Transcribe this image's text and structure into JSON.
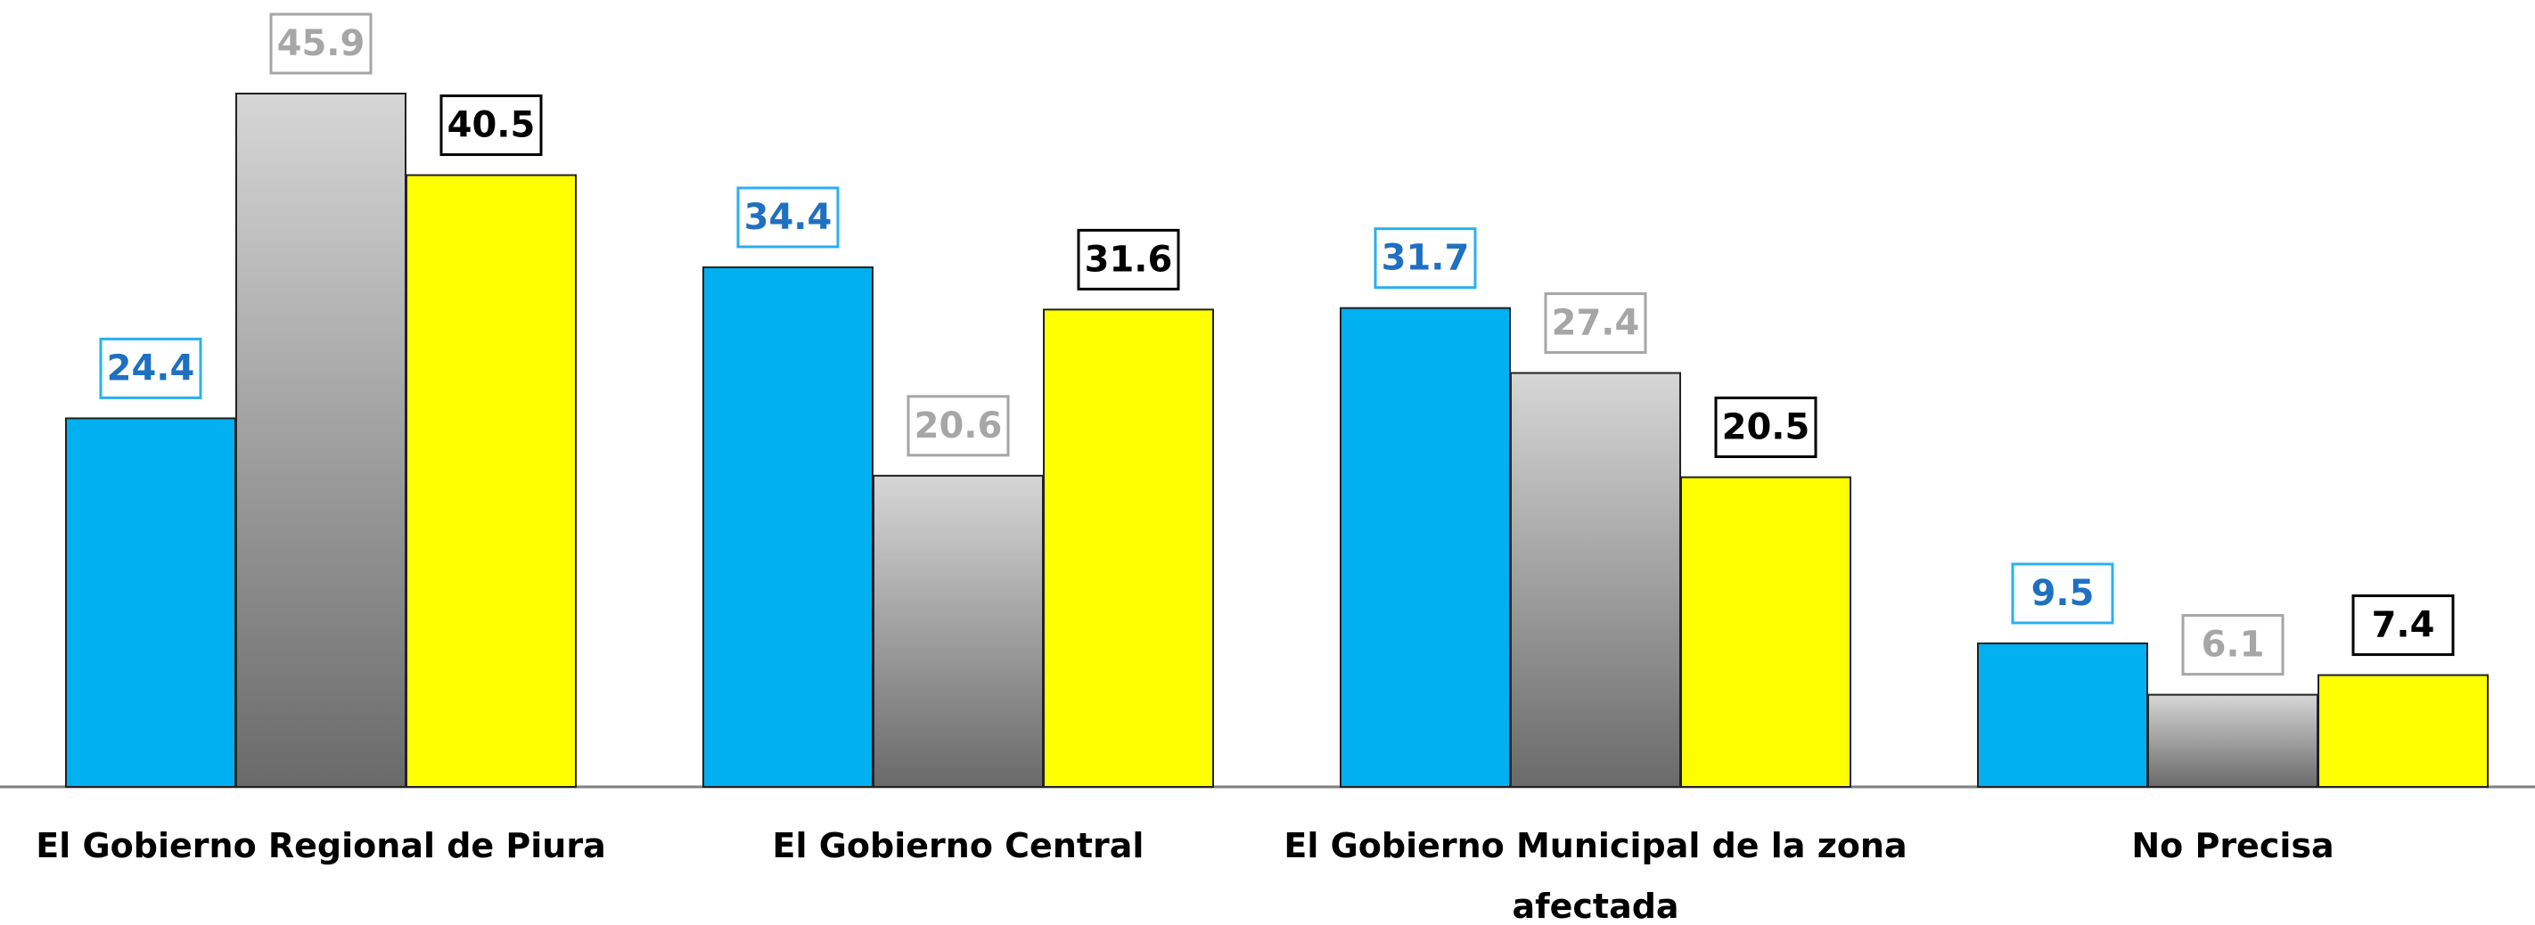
{
  "chart_data": {
    "type": "bar",
    "categories": [
      "El Gobierno Regional de Piura",
      "El Gobierno Central",
      "El Gobierno Municipal de la zona afectada",
      "No Precisa"
    ],
    "series": [
      {
        "color": "#00b0f0",
        "values": [
          24.4,
          34.4,
          31.7,
          9.5
        ]
      },
      {
        "color": "#6a6a6a",
        "values": [
          45.9,
          20.6,
          27.4,
          6.1
        ]
      },
      {
        "color": "#ffff00",
        "values": [
          40.5,
          31.6,
          20.5,
          7.4
        ]
      }
    ],
    "ylim": [
      0,
      50
    ]
  }
}
